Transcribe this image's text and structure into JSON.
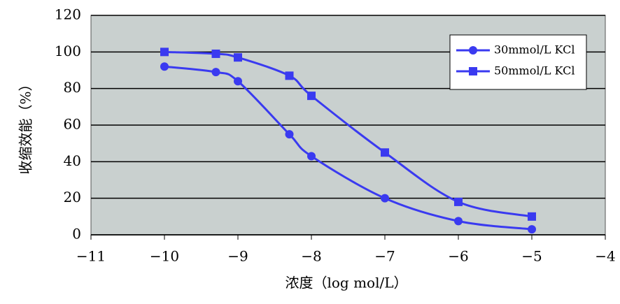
{
  "chart_data": {
    "type": "line",
    "x_label": "浓度（log mol/L）",
    "y_label": "收缩效能（%）",
    "x": [
      -10,
      -9.3,
      -9,
      -8.3,
      -8,
      -7,
      -6,
      -5
    ],
    "series": [
      {
        "name": "30mmol/L KCl",
        "color": "#3a3af0",
        "marker": "circle",
        "values": [
          92,
          89,
          84,
          55,
          43,
          20,
          7.5,
          3
        ]
      },
      {
        "name": "50mmol/L KCl",
        "color": "#3a3af0",
        "marker": "square",
        "values": [
          100,
          99,
          97,
          87,
          76,
          45,
          18,
          10
        ]
      }
    ],
    "xlim": [
      -11,
      -4
    ],
    "xticks": [
      {
        "value": -11,
        "label": "−11"
      },
      {
        "value": -10,
        "label": "−10"
      },
      {
        "value": -9,
        "label": "−9"
      },
      {
        "value": -8,
        "label": "−8"
      },
      {
        "value": -7,
        "label": "−7"
      },
      {
        "value": -6,
        "label": "−6"
      },
      {
        "value": -5,
        "label": "−5"
      },
      {
        "value": -4,
        "label": "−4"
      }
    ],
    "ylim": [
      0,
      120
    ],
    "yticks": [
      0,
      20,
      40,
      60,
      80,
      100,
      120
    ],
    "grid": true,
    "legend": "upper right"
  }
}
